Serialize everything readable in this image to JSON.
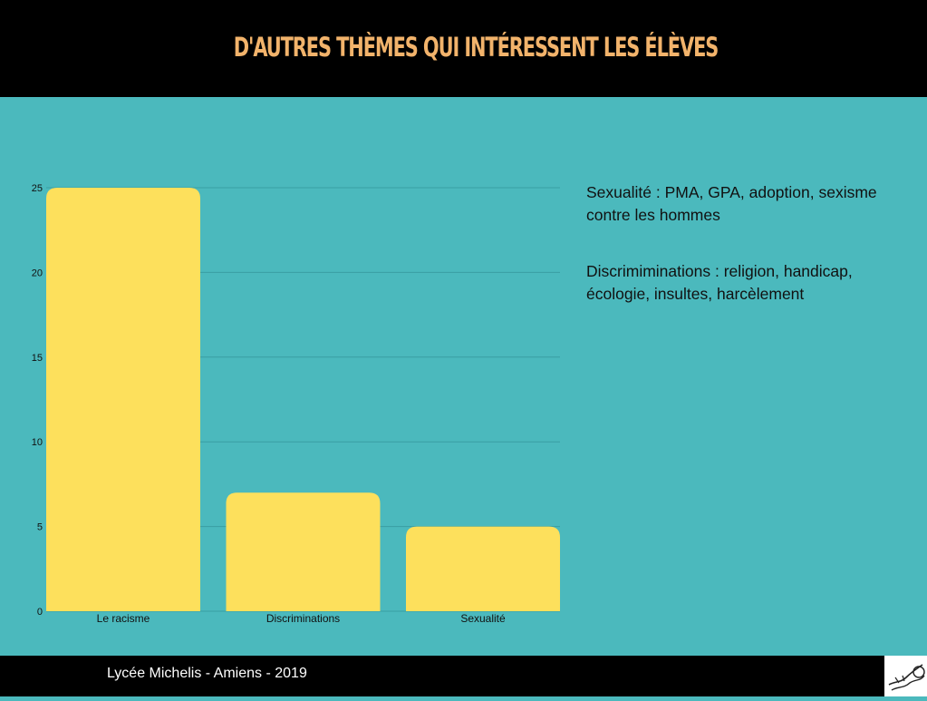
{
  "header": {
    "title": "D'AUTRES THÈMES QUI INTÉRESSENT LES ÉLÈVES"
  },
  "colors": {
    "header_bg": "#000000",
    "title": "#f2b36b",
    "slide_bg": "#4bb9bd",
    "bar": "#fde05c",
    "grid": "#3a9ea3",
    "axis_text": "#111111"
  },
  "chart_data": {
    "type": "bar",
    "categories": [
      "Le racisme",
      "Discriminations",
      "Sexualité"
    ],
    "values": [
      25,
      7,
      5
    ],
    "title": "",
    "xlabel": "",
    "ylabel": "",
    "ylim": [
      0,
      25
    ],
    "yticks": [
      0,
      5,
      10,
      15,
      20,
      25
    ],
    "grid": true
  },
  "notes": [
    "Sexualité : PMA, GPA, adoption, sexisme contre les hommes",
    "Discrimiminations : religion, handicap, écologie, insultes, harcèlement"
  ],
  "footer": {
    "text": "Lycée Michelis - Amiens - 2019"
  },
  "logo": {
    "icon": "school-logo-icon"
  }
}
